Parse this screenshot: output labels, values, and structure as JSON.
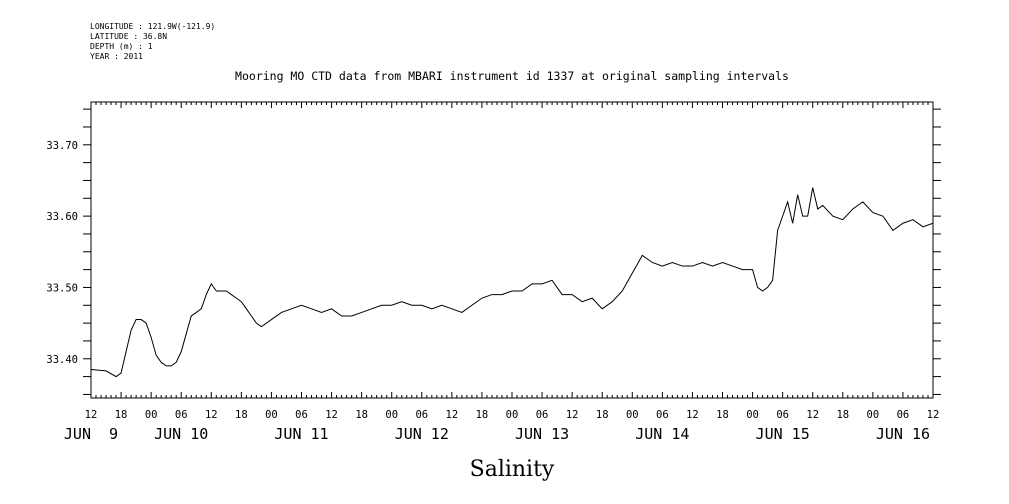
{
  "metadata": {
    "longitude": "LONGITUDE : 121.9W(-121.9)",
    "latitude": "LATITUDE : 36.8N",
    "depth": "DEPTH (m) : 1",
    "year": "YEAR : 2011"
  },
  "chart_data": {
    "type": "line",
    "title": "Mooring MO CTD data from MBARI instrument id 1337 at original sampling intervals",
    "xlabel": "Salinity",
    "ylabel": "",
    "xlim_hours": [
      0,
      168
    ],
    "ylim": [
      33.345,
      33.76
    ],
    "yticks": [
      33.4,
      33.5,
      33.6,
      33.7
    ],
    "ytick_labels": [
      "33.40",
      "33.50",
      "33.60",
      "33.70"
    ],
    "hour_tick_labels": [
      "12",
      "18",
      "00",
      "06",
      "12",
      "18",
      "00",
      "06",
      "12",
      "18",
      "00",
      "06",
      "12",
      "18",
      "00",
      "06",
      "12",
      "18",
      "00",
      "06",
      "12",
      "18",
      "00",
      "06",
      "12",
      "18",
      "00",
      "06",
      "12"
    ],
    "day_labels": [
      {
        "text": "JUN  9",
        "hour": 0
      },
      {
        "text": "JUN 10",
        "hour": 18
      },
      {
        "text": "JUN 11",
        "hour": 42
      },
      {
        "text": "JUN 12",
        "hour": 66
      },
      {
        "text": "JUN 13",
        "hour": 90
      },
      {
        "text": "JUN 14",
        "hour": 114
      },
      {
        "text": "JUN 15",
        "hour": 138
      },
      {
        "text": "JUN 16",
        "hour": 162
      }
    ],
    "series": [
      {
        "x_hours": [
          0,
          3,
          5,
          6,
          7,
          8,
          9,
          10,
          11,
          12,
          13,
          14,
          15,
          16,
          17,
          18,
          19,
          20,
          21,
          22,
          23,
          24,
          25,
          26,
          27,
          28,
          29,
          30,
          31,
          32,
          33,
          34,
          36,
          38,
          40,
          42,
          44,
          46,
          48,
          50,
          52,
          54,
          56,
          58,
          60,
          62,
          64,
          66,
          68,
          70,
          72,
          74,
          76,
          78,
          80,
          82,
          84,
          86,
          88,
          90,
          92,
          94,
          96,
          98,
          100,
          102,
          104,
          106,
          108,
          110,
          112,
          114,
          116,
          118,
          120,
          122,
          124,
          126,
          128,
          130,
          132,
          133,
          134,
          135,
          136,
          137,
          138,
          139,
          140,
          141,
          142,
          143,
          144,
          145,
          146,
          148,
          150,
          152,
          154,
          156,
          158,
          160,
          162,
          164,
          166,
          168
        ],
        "values": [
          33.385,
          33.383,
          33.375,
          33.38,
          33.41,
          33.44,
          33.455,
          33.455,
          33.45,
          33.43,
          33.405,
          33.395,
          33.39,
          33.39,
          33.395,
          33.41,
          33.435,
          33.46,
          33.465,
          33.47,
          33.49,
          33.505,
          33.495,
          33.495,
          33.495,
          33.49,
          33.485,
          33.48,
          33.47,
          33.46,
          33.45,
          33.445,
          33.455,
          33.465,
          33.47,
          33.475,
          33.47,
          33.465,
          33.47,
          33.46,
          33.46,
          33.465,
          33.47,
          33.475,
          33.475,
          33.48,
          33.475,
          33.475,
          33.47,
          33.475,
          33.47,
          33.465,
          33.475,
          33.485,
          33.49,
          33.49,
          33.495,
          33.495,
          33.505,
          33.505,
          33.51,
          33.49,
          33.49,
          33.48,
          33.485,
          33.47,
          33.48,
          33.495,
          33.52,
          33.545,
          33.535,
          33.53,
          33.535,
          33.53,
          33.53,
          33.535,
          33.53,
          33.535,
          33.53,
          33.525,
          33.525,
          33.5,
          33.495,
          33.5,
          33.51,
          33.58,
          33.6,
          33.62,
          33.59,
          33.63,
          33.6,
          33.6,
          33.64,
          33.61,
          33.615,
          33.6,
          33.595,
          33.61,
          33.62,
          33.605,
          33.6,
          33.58,
          33.59,
          33.595,
          33.585,
          33.59
        ]
      }
    ]
  }
}
